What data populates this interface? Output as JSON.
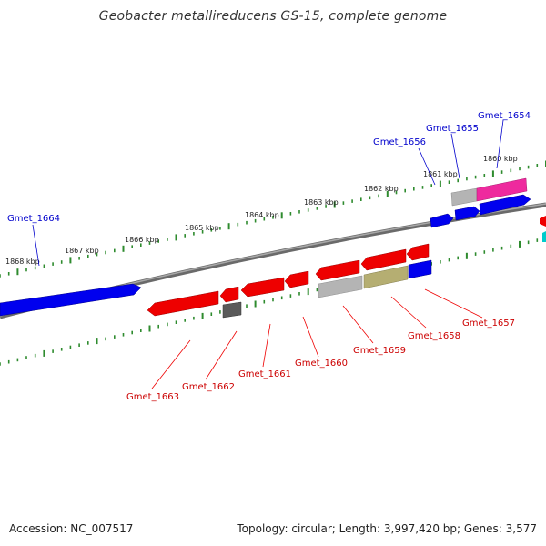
{
  "title": "Geobacter metallireducens GS-15, complete genome",
  "footer": {
    "accession": "Accession: NC_007517",
    "summary": "Topology: circular; Length: 3,997,420 bp; Genes: 3,577"
  },
  "colors": {
    "backbone": "#808080",
    "tick": "#2e8b2e",
    "forward_label": "#0000cc",
    "reverse_label": "#cc0000",
    "blue_gene": "#0000ee",
    "red_gene": "#ee0000",
    "gray_feature": "#b4b4b4",
    "dark_gray_feature": "#5a5a5a",
    "olive_feature": "#b5ae72",
    "magenta_feature": "#ee2a9e",
    "cyan_feature": "#00cccc"
  },
  "kbp_labels": [
    "1868 kbp",
    "1867 kbp",
    "1866 kbp",
    "1865 kbp",
    "1864 kbp",
    "1863 kbp",
    "1862 kbp",
    "1861 kbp",
    "1860 kbp"
  ],
  "forward_genes": [
    "Gmet_1664",
    "Gmet_1656",
    "Gmet_1655",
    "Gmet_1654"
  ],
  "reverse_genes": [
    "Gmet_1663",
    "Gmet_1662",
    "Gmet_1661",
    "Gmet_1660",
    "Gmet_1659",
    "Gmet_1658",
    "Gmet_1657"
  ]
}
